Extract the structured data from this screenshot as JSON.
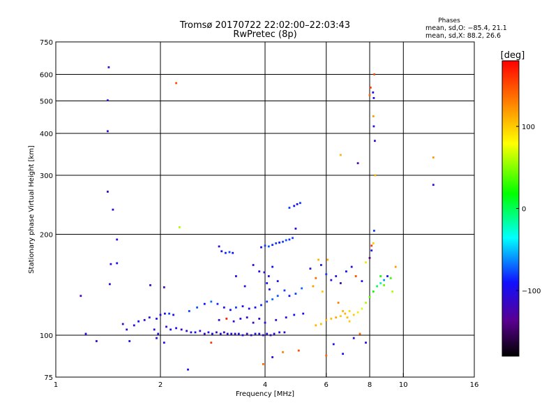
{
  "chart_data": {
    "type": "scatter",
    "title": "Tromsø 20170722 22:02:00–22:03:43",
    "subtitle": "RwPretec (8p)",
    "info": {
      "heading": "Phases",
      "line1": "mean, sd,O: −85.4, 21.1",
      "line2": "mean, sd,X:  88.2, 26.6"
    },
    "xlabel": "Frequency [MHz]",
    "ylabel": "Stationary phase Virtual Height [km]",
    "x_scale": "log",
    "y_scale": "log",
    "xlim": [
      1,
      16
    ],
    "ylim": [
      75,
      750
    ],
    "x_ticks": [
      1,
      2,
      4,
      6,
      8,
      10,
      16
    ],
    "x_tick_labels": [
      "1",
      "2",
      "4",
      "6",
      "8",
      "10",
      "16"
    ],
    "x_gridlines": [
      2,
      4,
      6,
      8,
      10
    ],
    "y_ticks": [
      75,
      100,
      200,
      300,
      400,
      500,
      600,
      750
    ],
    "y_tick_labels": [
      "75",
      "100",
      "200",
      "300",
      "400",
      "500",
      "600",
      "750"
    ],
    "y_gridlines": [
      100,
      200,
      300,
      400,
      500,
      600
    ],
    "grid": true,
    "colorbar": {
      "label": "[deg]",
      "range": [
        -180,
        180
      ],
      "ticks": [
        100,
        0,
        -100
      ],
      "tick_labels": [
        "100",
        "0",
        "−100"
      ]
    },
    "points": [
      [
        1.42,
        630,
        -110
      ],
      [
        1.41,
        502,
        -100
      ],
      [
        1.41,
        406,
        -110
      ],
      [
        1.41,
        268,
        -115
      ],
      [
        1.46,
        237,
        -105
      ],
      [
        1.5,
        193,
        -100
      ],
      [
        1.44,
        163,
        -100
      ],
      [
        1.5,
        164,
        -90
      ],
      [
        1.43,
        142,
        -110
      ],
      [
        1.18,
        131,
        -120
      ],
      [
        1.22,
        101,
        -100
      ],
      [
        1.31,
        96,
        -110
      ],
      [
        1.63,
        96,
        -95
      ],
      [
        2.22,
        565,
        150
      ],
      [
        2.27,
        210,
        60
      ],
      [
        1.87,
        141,
        -110
      ],
      [
        2.05,
        139,
        -120
      ],
      [
        1.68,
        107,
        -100
      ],
      [
        1.73,
        110,
        -90
      ],
      [
        1.8,
        111,
        -110
      ],
      [
        1.86,
        113,
        -100
      ],
      [
        1.95,
        112,
        -90
      ],
      [
        2.0,
        115,
        -110
      ],
      [
        2.06,
        116,
        -100
      ],
      [
        2.12,
        116,
        -80
      ],
      [
        2.18,
        115,
        -100
      ],
      [
        1.92,
        104,
        -110
      ],
      [
        1.97,
        101,
        -100
      ],
      [
        2.08,
        106,
        -110
      ],
      [
        2.14,
        104,
        -90
      ],
      [
        2.22,
        105,
        -100
      ],
      [
        2.3,
        104,
        -120
      ],
      [
        2.38,
        103,
        -110
      ],
      [
        2.45,
        102,
        -100
      ],
      [
        2.52,
        102,
        -90
      ],
      [
        2.6,
        103,
        -110
      ],
      [
        2.68,
        101,
        -115
      ],
      [
        2.75,
        102,
        -100
      ],
      [
        2.82,
        101,
        -95
      ],
      [
        2.9,
        102,
        -110
      ],
      [
        2.98,
        101,
        -100
      ],
      [
        3.05,
        102,
        -120
      ],
      [
        3.12,
        101,
        -105
      ],
      [
        3.2,
        101,
        -100
      ],
      [
        3.28,
        101,
        -110
      ],
      [
        3.36,
        101,
        -90
      ],
      [
        3.45,
        100,
        -100
      ],
      [
        3.55,
        101,
        -115
      ],
      [
        3.65,
        100,
        -110
      ],
      [
        3.75,
        101,
        -100
      ],
      [
        3.85,
        101,
        -95
      ],
      [
        3.95,
        100,
        -110
      ],
      [
        4.05,
        101,
        -100
      ],
      [
        4.15,
        100,
        -120
      ],
      [
        4.25,
        101,
        -105
      ],
      [
        4.4,
        102,
        -100
      ],
      [
        4.55,
        102,
        -110
      ],
      [
        2.42,
        118,
        -80
      ],
      [
        2.55,
        121,
        -75
      ],
      [
        2.68,
        124,
        -90
      ],
      [
        2.8,
        126,
        -70
      ],
      [
        2.92,
        124,
        -85
      ],
      [
        3.05,
        121,
        -100
      ],
      [
        3.18,
        119,
        -90
      ],
      [
        3.3,
        121,
        -80
      ],
      [
        3.45,
        122,
        -95
      ],
      [
        3.6,
        120,
        -100
      ],
      [
        3.75,
        121,
        -90
      ],
      [
        3.9,
        123,
        -85
      ],
      [
        4.05,
        126,
        -80
      ],
      [
        4.2,
        128,
        -70
      ],
      [
        4.35,
        131,
        -75
      ],
      [
        4.55,
        136,
        -80
      ],
      [
        4.7,
        131,
        -90
      ],
      [
        4.9,
        133,
        -80
      ],
      [
        5.1,
        138,
        -70
      ],
      [
        2.95,
        111,
        -110
      ],
      [
        3.1,
        112,
        170
      ],
      [
        3.25,
        110,
        -110
      ],
      [
        3.4,
        112,
        -100
      ],
      [
        3.55,
        113,
        -110
      ],
      [
        3.7,
        109,
        -120
      ],
      [
        3.85,
        112,
        -100
      ],
      [
        4.0,
        109,
        -105
      ],
      [
        4.3,
        111,
        -110
      ],
      [
        4.6,
        113,
        -100
      ],
      [
        4.85,
        115,
        -90
      ],
      [
        5.15,
        116,
        -100
      ],
      [
        3.0,
        178,
        -90
      ],
      [
        3.08,
        176,
        -85
      ],
      [
        3.16,
        177,
        -80
      ],
      [
        3.23,
        176,
        -90
      ],
      [
        2.95,
        184,
        -110
      ],
      [
        3.9,
        183,
        -90
      ],
      [
        4.0,
        185,
        -80
      ],
      [
        4.1,
        184,
        -75
      ],
      [
        4.2,
        186,
        -85
      ],
      [
        4.3,
        188,
        -80
      ],
      [
        4.4,
        189,
        -90
      ],
      [
        4.5,
        190,
        -80
      ],
      [
        4.6,
        192,
        -75
      ],
      [
        4.7,
        193,
        -85
      ],
      [
        4.8,
        195,
        -80
      ],
      [
        4.85,
        243,
        -90
      ],
      [
        4.95,
        246,
        -95
      ],
      [
        5.05,
        248,
        -80
      ],
      [
        4.7,
        240,
        -80
      ],
      [
        4.9,
        208,
        -110
      ],
      [
        3.98,
        154,
        -110
      ],
      [
        4.1,
        150,
        -100
      ],
      [
        4.05,
        143,
        -90
      ],
      [
        4.12,
        137,
        -100
      ],
      [
        4.2,
        160,
        -90
      ],
      [
        4.35,
        145,
        -100
      ],
      [
        3.7,
        162,
        -110
      ],
      [
        3.85,
        155,
        -100
      ],
      [
        3.5,
        140,
        -110
      ],
      [
        3.3,
        150,
        -100
      ],
      [
        5.4,
        158,
        -110
      ],
      [
        5.6,
        148,
        140
      ],
      [
        5.8,
        162,
        -100
      ],
      [
        6.0,
        152,
        -80
      ],
      [
        6.05,
        168,
        120
      ],
      [
        5.7,
        168,
        110
      ],
      [
        5.5,
        140,
        120
      ],
      [
        5.85,
        135,
        100
      ],
      [
        6.2,
        146,
        -110
      ],
      [
        6.4,
        150,
        -100
      ],
      [
        6.6,
        143,
        -120
      ],
      [
        6.85,
        155,
        -90
      ],
      [
        7.1,
        160,
        -110
      ],
      [
        7.3,
        150,
        150
      ],
      [
        7.6,
        145,
        -100
      ],
      [
        7.8,
        165,
        90
      ],
      [
        8.0,
        170,
        -140
      ],
      [
        8.1,
        185,
        160
      ],
      [
        6.5,
        125,
        130
      ],
      [
        6.7,
        118,
        110
      ],
      [
        6.9,
        113,
        105
      ],
      [
        7.0,
        110,
        100
      ],
      [
        7.2,
        115,
        100
      ],
      [
        7.4,
        117,
        90
      ],
      [
        7.6,
        120,
        70
      ],
      [
        7.8,
        125,
        60
      ],
      [
        8.0,
        130,
        40
      ],
      [
        8.2,
        135,
        20
      ],
      [
        8.4,
        140,
        0
      ],
      [
        8.6,
        143,
        -20
      ],
      [
        8.8,
        146,
        -60
      ],
      [
        9.0,
        150,
        -90
      ],
      [
        6.0,
        111,
        110
      ],
      [
        6.2,
        112,
        105
      ],
      [
        6.4,
        113,
        115
      ],
      [
        6.6,
        114,
        100
      ],
      [
        6.8,
        116,
        110
      ],
      [
        7.0,
        118,
        95
      ],
      [
        5.8,
        108,
        105
      ],
      [
        5.6,
        107,
        110
      ],
      [
        7.5,
        101,
        140
      ],
      [
        7.8,
        95,
        -100
      ],
      [
        6.3,
        94,
        -100
      ],
      [
        7.2,
        98,
        -110
      ],
      [
        5.0,
        90,
        150
      ],
      [
        6.0,
        87,
        140
      ],
      [
        4.5,
        89,
        130
      ],
      [
        3.95,
        82,
        140
      ],
      [
        4.2,
        86,
        -100
      ],
      [
        6.7,
        88,
        -90
      ],
      [
        2.4,
        79,
        -100
      ],
      [
        2.8,
        95,
        160
      ],
      [
        6.6,
        345,
        110
      ],
      [
        7.4,
        326,
        -130
      ],
      [
        8.0,
        520,
        140
      ],
      [
        8.05,
        548,
        160
      ],
      [
        8.18,
        530,
        -100
      ],
      [
        8.22,
        510,
        -100
      ],
      [
        8.25,
        600,
        150
      ],
      [
        8.2,
        450,
        120
      ],
      [
        8.22,
        420,
        -110
      ],
      [
        8.28,
        380,
        -100
      ],
      [
        8.3,
        300,
        110
      ],
      [
        8.24,
        205,
        -80
      ],
      [
        8.2,
        188,
        100
      ],
      [
        8.1,
        179,
        -110
      ],
      [
        12.2,
        339,
        120
      ],
      [
        12.2,
        281,
        -110
      ],
      [
        9.5,
        160,
        120
      ],
      [
        9.2,
        148,
        30
      ],
      [
        8.6,
        150,
        20
      ],
      [
        8.8,
        141,
        40
      ],
      [
        9.3,
        135,
        60
      ],
      [
        1.56,
        108,
        -105
      ],
      [
        1.6,
        104,
        -110
      ],
      [
        1.95,
        98,
        -100
      ],
      [
        2.05,
        95,
        -95
      ]
    ]
  }
}
